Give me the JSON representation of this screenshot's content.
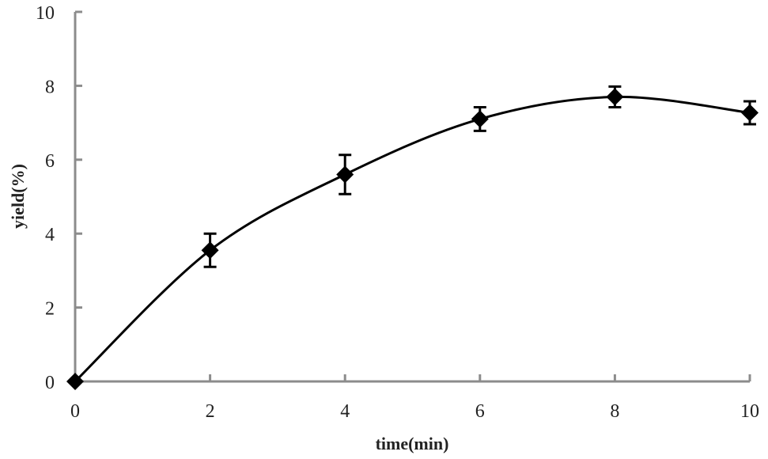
{
  "chart_data": {
    "type": "line",
    "title": "",
    "xlabel": "time(min)",
    "ylabel": "yield(%)",
    "xlim": [
      0,
      10
    ],
    "ylim": [
      0,
      10
    ],
    "x_ticks": [
      0,
      2,
      4,
      6,
      8,
      10
    ],
    "y_ticks": [
      0,
      2,
      4,
      6,
      8,
      10
    ],
    "grid": false,
    "legend": null,
    "smooth": true,
    "marker": "diamond",
    "colors": {
      "axis": "#8c8c8c",
      "line": "#000000",
      "marker": "#000000"
    },
    "series": [
      {
        "name": "yield",
        "x": [
          0,
          2,
          4,
          6,
          8,
          10
        ],
        "values": [
          0,
          3.55,
          5.6,
          7.1,
          7.7,
          7.27
        ],
        "error": [
          0,
          0.45,
          0.53,
          0.32,
          0.28,
          0.31
        ]
      }
    ]
  }
}
